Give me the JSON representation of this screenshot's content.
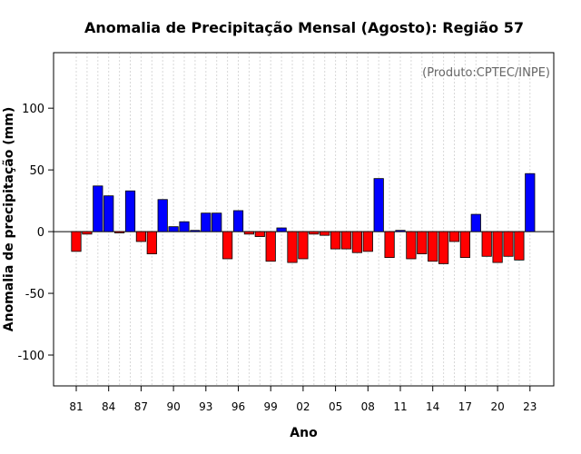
{
  "chart_data": {
    "type": "bar",
    "title": "Anomalia de Precipitação Mensal (Agosto): Região 57",
    "xlabel": "Ano",
    "ylabel": "Anomalia de precipitação (mm)",
    "source": "(Produto:CPTEC/INPE)",
    "ylim": [
      -125,
      145
    ],
    "yticks": [
      -100,
      -50,
      0,
      50,
      100
    ],
    "xtick_labels": [
      "81",
      "84",
      "87",
      "90",
      "93",
      "96",
      "99",
      "02",
      "05",
      "08",
      "11",
      "14",
      "17",
      "20",
      "23"
    ],
    "grid": "vertical dotted",
    "colors": {
      "positive": "#0000ff",
      "negative": "#ff0000",
      "reference_line": "#000000"
    },
    "years": [
      1981,
      1982,
      1983,
      1984,
      1985,
      1986,
      1987,
      1988,
      1989,
      1990,
      1991,
      1992,
      1993,
      1994,
      1995,
      1996,
      1997,
      1998,
      1999,
      2000,
      2001,
      2002,
      2003,
      2004,
      2005,
      2006,
      2007,
      2008,
      2009,
      2010,
      2011,
      2012,
      2013,
      2014,
      2015,
      2016,
      2017,
      2018,
      2019,
      2020,
      2021,
      2022,
      2023
    ],
    "values": [
      -16,
      -2,
      37,
      29,
      -1,
      33,
      -8,
      -18,
      26,
      4,
      8,
      1,
      15,
      15,
      -22,
      17,
      -2,
      -4,
      -24,
      3,
      -25,
      -22,
      -2,
      -3,
      -14,
      -14,
      -17,
      -16,
      43,
      -21,
      1,
      -22,
      -18,
      -24,
      -26,
      -8,
      -21,
      14,
      -20,
      -25,
      -20,
      -23,
      47
    ]
  }
}
